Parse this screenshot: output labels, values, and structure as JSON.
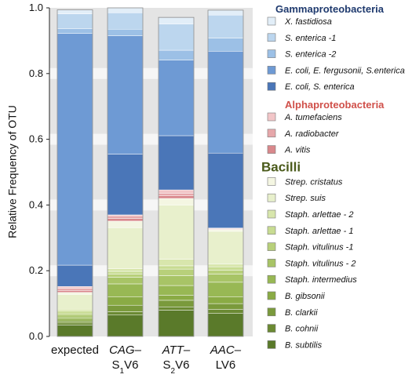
{
  "chart_data": {
    "type": "bar",
    "stacked": true,
    "ylabel": "Relative Frequency of OTU",
    "ylim": [
      0,
      1.0
    ],
    "yticks": [
      "0.0",
      "0.2",
      "0.4",
      "0.6",
      "0.8",
      "1.0"
    ],
    "grid": false,
    "legend_position": "right",
    "categories": [
      {
        "line1": "expected",
        "line2_main": "",
        "line2_sub": "",
        "line2_tail": ""
      },
      {
        "line1": "CAG–",
        "line2_main": "S",
        "line2_sub": "1",
        "line2_tail": "V6"
      },
      {
        "line1": "ATT–",
        "line2_main": "S",
        "line2_sub": "2",
        "line2_tail": "V6"
      },
      {
        "line1": "AAC–",
        "line2_main": "LV6",
        "line2_sub": "",
        "line2_tail": ""
      }
    ],
    "series": [
      {
        "name": "B. subtilis",
        "color": "#5a7a2a",
        "values": [
          0.035,
          0.065,
          0.08,
          0.07
        ]
      },
      {
        "name": "B. cohnii",
        "color": "#6b8a33",
        "values": [
          0.006,
          0.01,
          0.01,
          0.012
        ]
      },
      {
        "name": "B. clarkii",
        "color": "#7a9a3c",
        "values": [
          0.006,
          0.02,
          0.02,
          0.018
        ]
      },
      {
        "name": "B. gibsonii",
        "color": "#8aab45",
        "values": [
          0.006,
          0.025,
          0.015,
          0.02
        ]
      },
      {
        "name": "Staph. intermedius",
        "color": "#98b854",
        "values": [
          0.006,
          0.04,
          0.03,
          0.045
        ]
      },
      {
        "name": "Staph. vitulinus - 2",
        "color": "#a8c466",
        "values": [
          0.006,
          0.02,
          0.03,
          0.025
        ]
      },
      {
        "name": "Staph. vitulinus -1",
        "color": "#b8d07a",
        "values": [
          0.006,
          0.01,
          0.02,
          0.012
        ]
      },
      {
        "name": "Staph. arlettae - 1",
        "color": "#c8dc92",
        "values": [
          0.006,
          0.008,
          0.01,
          0.01
        ]
      },
      {
        "name": "Staph. arlettae - 2",
        "color": "#d8e6ac",
        "values": [
          0.006,
          0.008,
          0.02,
          0.008
        ]
      },
      {
        "name": "Strep. suis",
        "color": "#e8f0cc",
        "values": [
          0.045,
          0.125,
          0.165,
          0.1
        ]
      },
      {
        "name": "Strep. cristatus",
        "color": "#f4f6e2",
        "values": [
          0.006,
          0.02,
          0.02,
          0.005
        ]
      },
      {
        "name": "A. vitis",
        "color": "#d9888c",
        "values": [
          0.006,
          0.008,
          0.008,
          0.002
        ]
      },
      {
        "name": "A. radiobacter",
        "color": "#e6a7aa",
        "values": [
          0.006,
          0.008,
          0.008,
          0.002
        ]
      },
      {
        "name": "A. tumefaciens",
        "color": "#f2c6c8",
        "values": [
          0.006,
          0.003,
          0.01,
          0.001
        ]
      },
      {
        "name": "E. coli, S. enterica",
        "color": "#4a76b8",
        "values": [
          0.065,
          0.185,
          0.165,
          0.228
        ]
      },
      {
        "name": "E. coli, E. fergusonii, S.enterica",
        "color": "#6e9ad4",
        "values": [
          0.705,
          0.36,
          0.23,
          0.31
        ]
      },
      {
        "name": "S. enterica -2",
        "color": "#9cc0e6",
        "values": [
          0.015,
          0.02,
          0.03,
          0.04
        ]
      },
      {
        "name": "S. enterica -1",
        "color": "#bcd6ee",
        "values": [
          0.045,
          0.05,
          0.08,
          0.07
        ]
      },
      {
        "name": "X. fastidiosa",
        "color": "#e2eef8",
        "values": [
          0.012,
          0.015,
          0.02,
          0.015
        ]
      }
    ],
    "legend_groups": [
      {
        "title": "Gammaproteobacteria",
        "title_color": "#1f3a6e",
        "title_size": 13,
        "items": [
          "X. fastidiosa",
          "S. enterica -1",
          "S. enterica -2",
          "E. coli, E. fergusonii, S.enterica",
          "E. coli, S. enterica"
        ]
      },
      {
        "title": "Alphaproteobacteria",
        "title_color": "#d0504a",
        "title_size": 13,
        "items": [
          "A. tumefaciens",
          "A. radiobacter",
          "A. vitis"
        ]
      },
      {
        "title": "Bacilli",
        "title_color": "#4a5a1a",
        "title_size": 17,
        "items": [
          "Strep. cristatus",
          "Strep. suis",
          "Staph. arlettae - 2",
          "Staph. arlettae - 1",
          "Staph. vitulinus -1",
          "Staph. vitulinus - 2",
          "Staph. intermedius",
          "B. gibsonii",
          "B. clarkii",
          "B. cohnii",
          "B. subtilis"
        ]
      }
    ]
  }
}
